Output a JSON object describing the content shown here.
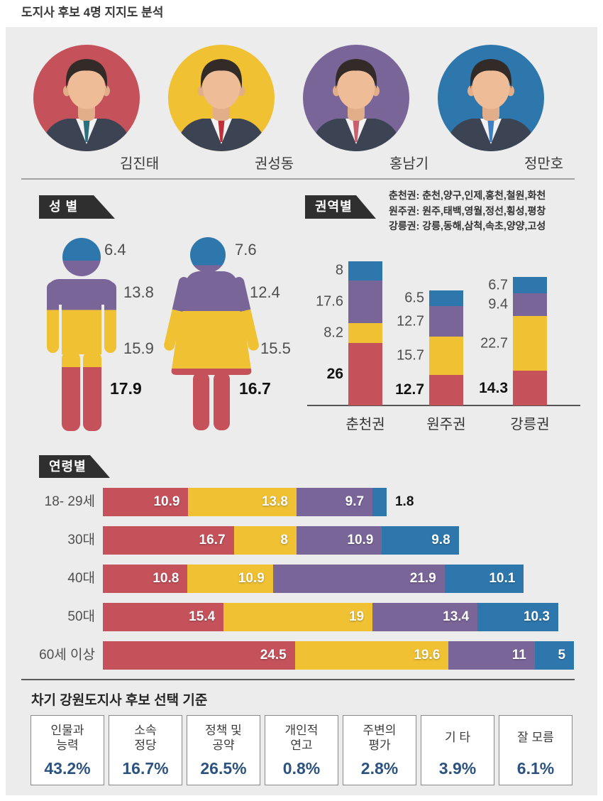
{
  "page_title": "도지사 후보 4명 지지도 분석",
  "colors": {
    "red": "#c5515b",
    "yellow": "#efc133",
    "purple": "#7a6599",
    "blue": "#2e77ad",
    "accent_percent": "#2c537f",
    "tag_bg": "#2f2f2f",
    "panel_bg": "#ececec"
  },
  "candidates": [
    {
      "name": "김진태",
      "color": "#c5515b",
      "tie_color": "#2e6f7e"
    },
    {
      "name": "권성동",
      "color": "#efc133",
      "tie_color": "#c0303a"
    },
    {
      "name": "홍남기",
      "color": "#7a6599",
      "tie_color": "#c75f6e"
    },
    {
      "name": "정만호",
      "color": "#2e77ad",
      "tie_color": "#3f7fc0"
    }
  ],
  "gender_section": {
    "tag": "성 별",
    "order_top_to_bottom": [
      "정만호",
      "홍남기",
      "권성동",
      "김진태"
    ],
    "male": {
      "values": [
        6.4,
        13.8,
        15.9,
        17.9
      ]
    },
    "female": {
      "values": [
        7.6,
        12.4,
        15.5,
        16.7
      ]
    }
  },
  "region_section": {
    "tag": "권역별",
    "legend": [
      "춘천권: 춘천,양구,인제,홍천,철원,화천",
      "원주권: 원주,태백,영월,정선,횡성,평창",
      "강릉권: 강릉,동해,삼척,속초,양양,고성"
    ],
    "order_bottom_to_top": [
      "김진태",
      "권성동",
      "홍남기",
      "정만호"
    ],
    "bars": [
      {
        "label": "춘천권",
        "values": [
          26,
          8.2,
          17.6,
          8
        ]
      },
      {
        "label": "원주권",
        "values": [
          12.7,
          15.7,
          12.7,
          6.5
        ]
      },
      {
        "label": "강릉권",
        "values": [
          14.3,
          22.7,
          9.4,
          6.7
        ]
      }
    ]
  },
  "age_section": {
    "tag": "연령별",
    "order_left_to_right": [
      "김진태",
      "권성동",
      "홍남기",
      "정만호"
    ],
    "rows": [
      {
        "label": "18- 29세",
        "values": [
          10.9,
          13.8,
          9.7,
          1.8
        ]
      },
      {
        "label": "30대",
        "values": [
          16.7,
          8,
          10.9,
          9.8
        ]
      },
      {
        "label": "40대",
        "values": [
          10.8,
          10.9,
          21.9,
          10.1
        ]
      },
      {
        "label": "50대",
        "values": [
          15.4,
          19,
          13.4,
          10.3
        ]
      },
      {
        "label": "60세 이상",
        "values": [
          24.5,
          19.6,
          11,
          5
        ]
      }
    ]
  },
  "criteria_section": {
    "title": "차기 강원도지사 후보 선택 기준",
    "items": [
      {
        "label": "인물과\n능력",
        "value": "43.2%"
      },
      {
        "label": "소속\n정당",
        "value": "16.7%"
      },
      {
        "label": "정책 및\n공약",
        "value": "26.5%"
      },
      {
        "label": "개인적\n연고",
        "value": "0.8%"
      },
      {
        "label": "주변의\n평가",
        "value": "2.8%"
      },
      {
        "label": "기 타",
        "value": "3.9%"
      },
      {
        "label": "잘 모름",
        "value": "6.1%"
      }
    ]
  },
  "chart_data": [
    {
      "type": "bar",
      "subtype": "stacked-pictogram",
      "title": "성 별",
      "categories": [
        "남성",
        "여성"
      ],
      "series": [
        {
          "name": "김진태",
          "color": "#c5515b",
          "values": [
            17.9,
            16.7
          ]
        },
        {
          "name": "권성동",
          "color": "#efc133",
          "values": [
            15.9,
            15.5
          ]
        },
        {
          "name": "홍남기",
          "color": "#7a6599",
          "values": [
            13.8,
            12.4
          ]
        },
        {
          "name": "정만호",
          "color": "#2e77ad",
          "values": [
            6.4,
            7.6
          ]
        }
      ],
      "unit": "%"
    },
    {
      "type": "bar",
      "subtype": "stacked-vertical",
      "title": "권역별",
      "categories": [
        "춘천권",
        "원주권",
        "강릉권"
      ],
      "series": [
        {
          "name": "김진태",
          "color": "#c5515b",
          "values": [
            26,
            12.7,
            14.3
          ]
        },
        {
          "name": "권성동",
          "color": "#efc133",
          "values": [
            8.2,
            15.7,
            22.7
          ]
        },
        {
          "name": "홍남기",
          "color": "#7a6599",
          "values": [
            17.6,
            12.7,
            9.4
          ]
        },
        {
          "name": "정만호",
          "color": "#2e77ad",
          "values": [
            8,
            6.5,
            6.7
          ]
        }
      ],
      "unit": "%"
    },
    {
      "type": "bar",
      "subtype": "stacked-horizontal",
      "title": "연령별",
      "categories": [
        "18- 29세",
        "30대",
        "40대",
        "50대",
        "60세 이상"
      ],
      "series": [
        {
          "name": "김진태",
          "color": "#c5515b",
          "values": [
            10.9,
            16.7,
            10.8,
            15.4,
            24.5
          ]
        },
        {
          "name": "권성동",
          "color": "#efc133",
          "values": [
            13.8,
            8,
            10.9,
            19,
            19.6
          ]
        },
        {
          "name": "홍남기",
          "color": "#7a6599",
          "values": [
            9.7,
            10.9,
            21.9,
            13.4,
            11
          ]
        },
        {
          "name": "정만호",
          "color": "#2e77ad",
          "values": [
            1.8,
            9.8,
            10.1,
            10.3,
            5
          ]
        }
      ],
      "unit": "%"
    },
    {
      "type": "bar",
      "title": "차기 강원도지사 후보 선택 기준",
      "categories": [
        "인물과 능력",
        "소속 정당",
        "정책 및 공약",
        "개인적 연고",
        "주변의 평가",
        "기 타",
        "잘 모름"
      ],
      "values": [
        43.2,
        16.7,
        26.5,
        0.8,
        2.8,
        3.9,
        6.1
      ],
      "unit": "%"
    }
  ]
}
